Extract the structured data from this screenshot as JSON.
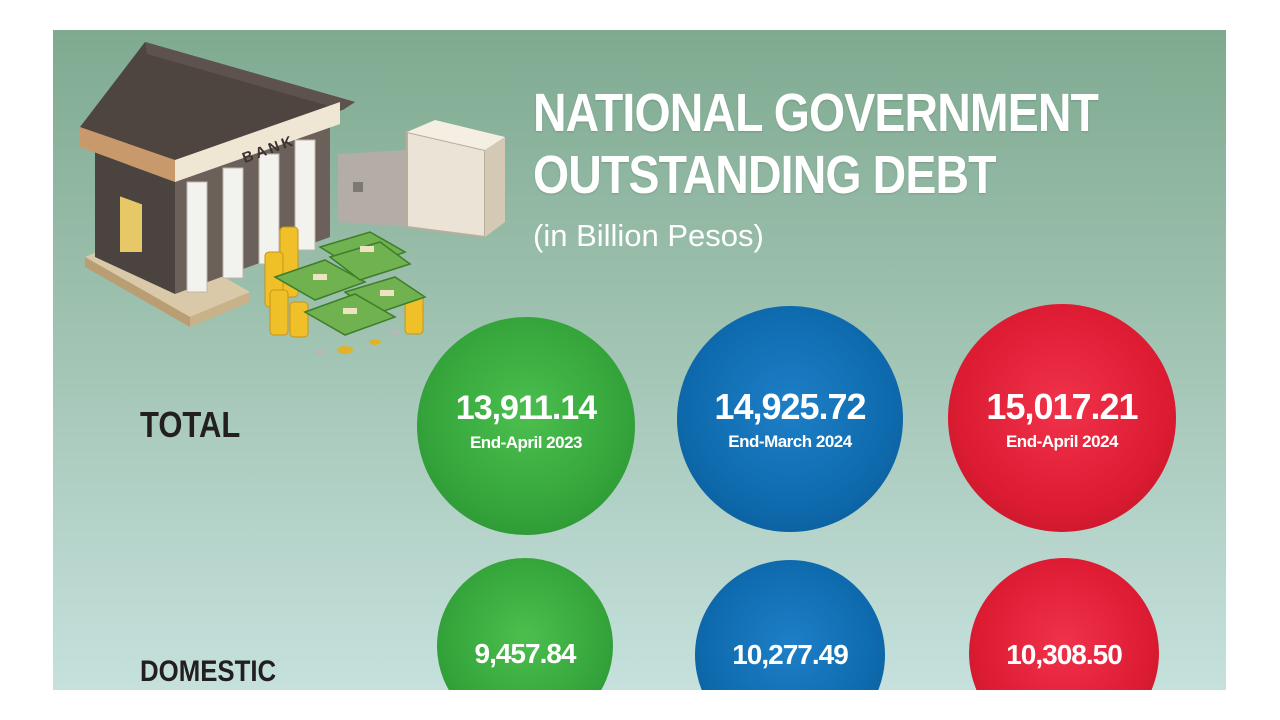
{
  "title": {
    "line1": "NATIONAL GOVERNMENT",
    "line2": "OUTSTANDING DEBT",
    "subtitle": "(in Billion Pesos)"
  },
  "illustration": {
    "bank_sign": "BANK"
  },
  "colors": {
    "green": "#35a53b",
    "blue": "#0e6aad",
    "red": "#dd1c33",
    "title": "#ffffff",
    "row_label": "#231f20"
  },
  "rows": {
    "total": {
      "label": "TOTAL",
      "values": [
        "13,911.14",
        "14,925.72",
        "15,017.21"
      ],
      "periods": [
        "End-April 2023",
        "End-March 2024",
        "End-April 2024"
      ]
    },
    "domestic": {
      "label": "DOMESTIC",
      "values": [
        "9,457.84",
        "10,277.49",
        "10,308.50"
      ]
    }
  },
  "chart_data": {
    "type": "bubble",
    "title": "NATIONAL GOVERNMENT OUTSTANDING DEBT",
    "subtitle": "(in Billion Pesos)",
    "categories": [
      "End-April 2023",
      "End-March 2024",
      "End-April 2024"
    ],
    "series": [
      {
        "name": "TOTAL",
        "values": [
          13911.14,
          14925.72,
          15017.21
        ]
      },
      {
        "name": "DOMESTIC",
        "values": [
          9457.84,
          10277.49,
          10308.5
        ]
      }
    ]
  }
}
